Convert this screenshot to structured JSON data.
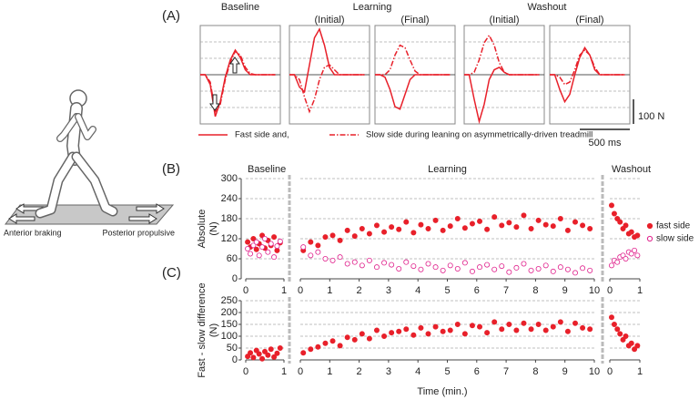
{
  "illustration": {
    "left_label": "Anterior braking",
    "right_label": "Posterior propulsive"
  },
  "chart_data": [
    {
      "type": "line",
      "label": "(A)",
      "legend": [
        "Fast side and,",
        "Slow side during leaning on asymmetrically-driven treadmill"
      ],
      "color": "#e8202a",
      "xlim": [
        0,
        800
      ],
      "ylim": [
        -200,
        200
      ],
      "x": [
        0,
        50,
        100,
        150,
        200,
        250,
        300,
        350,
        400,
        450,
        500,
        550,
        600,
        650,
        700,
        750
      ],
      "scalebar": {
        "y": {
          "value": 100,
          "label": "100 N"
        },
        "x": {
          "value": 500,
          "label": "500 ms"
        }
      },
      "groups": [
        {
          "title": "Baseline",
          "subplots": [
            {
              "fast": [
                0,
                0,
                -40,
                -170,
                -110,
                -10,
                60,
                100,
                70,
                20,
                0,
                0,
                0,
                0,
                0,
                0
              ],
              "slow": [
                0,
                0,
                -30,
                -150,
                -120,
                -20,
                50,
                95,
                80,
                30,
                5,
                0,
                0,
                0,
                0,
                0
              ]
            }
          ]
        },
        {
          "title": "Learning",
          "subplots": [
            {
              "subtitle": "(Initial)",
              "fast": [
                0,
                0,
                -50,
                -70,
                40,
                150,
                185,
                120,
                30,
                0,
                0,
                0,
                0,
                0,
                0,
                0
              ],
              "slow": [
                0,
                0,
                -20,
                -90,
                -150,
                -100,
                -20,
                30,
                40,
                20,
                0,
                0,
                0,
                0,
                0,
                0
              ]
            },
            {
              "subtitle": "(Final)",
              "fast": [
                0,
                0,
                -10,
                -60,
                -130,
                -140,
                -80,
                -20,
                0,
                0,
                0,
                0,
                0,
                0,
                0,
                0
              ],
              "slow": [
                0,
                0,
                0,
                20,
                80,
                120,
                110,
                60,
                15,
                0,
                0,
                0,
                0,
                0,
                0,
                0
              ]
            }
          ]
        },
        {
          "title": "Washout",
          "subplots": [
            {
              "subtitle": "(Initial)",
              "fast": [
                0,
                0,
                -100,
                -190,
                -120,
                -20,
                20,
                30,
                10,
                0,
                0,
                0,
                0,
                0,
                0,
                0
              ],
              "slow": [
                0,
                0,
                10,
                60,
                130,
                160,
                120,
                50,
                10,
                0,
                0,
                0,
                0,
                0,
                0,
                0
              ]
            },
            {
              "subtitle": "(Final)",
              "fast": [
                0,
                0,
                -60,
                -110,
                -80,
                0,
                70,
                110,
                80,
                20,
                0,
                0,
                0,
                0,
                0,
                0
              ],
              "slow": [
                0,
                0,
                -10,
                -40,
                -30,
                20,
                80,
                100,
                80,
                30,
                0,
                0,
                0,
                0,
                0,
                0
              ]
            }
          ]
        }
      ]
    },
    {
      "type": "scatter",
      "label": "(B)",
      "ylabel": [
        "Absolute",
        "(N)"
      ],
      "ylim": [
        0,
        300
      ],
      "yticks": [
        0,
        60,
        120,
        180,
        240,
        300
      ],
      "grid": true,
      "legend": "right",
      "segments": [
        {
          "title": "Baseline",
          "xlim": [
            0,
            1
          ],
          "xticks": [
            0,
            1
          ]
        },
        {
          "title": "Learning",
          "xlim": [
            0,
            10
          ],
          "xticks": [
            0,
            1,
            2,
            3,
            4,
            5,
            6,
            7,
            8,
            9,
            10
          ]
        },
        {
          "title": "Washout",
          "xlim": [
            0,
            1
          ],
          "xticks": [
            0,
            1
          ]
        }
      ],
      "series": [
        {
          "name": "fast side",
          "color": "#e8202a",
          "filled": true,
          "segments": [
            {
              "x": [
                0.05,
                0.12,
                0.2,
                0.28,
                0.35,
                0.43,
                0.5,
                0.58,
                0.66,
                0.74,
                0.82,
                0.9
              ],
              "values": [
                110,
                95,
                120,
                88,
                105,
                130,
                92,
                115,
                100,
                125,
                85,
                108
              ]
            },
            {
              "x": [
                0.1,
                0.35,
                0.6,
                0.85,
                1.1,
                1.35,
                1.6,
                1.85,
                2.1,
                2.35,
                2.6,
                2.85,
                3.1,
                3.35,
                3.6,
                3.85,
                4.1,
                4.35,
                4.6,
                4.85,
                5.1,
                5.35,
                5.6,
                5.85,
                6.1,
                6.35,
                6.6,
                6.85,
                7.1,
                7.35,
                7.6,
                7.85,
                8.1,
                8.35,
                8.6,
                8.85,
                9.1,
                9.35,
                9.6,
                9.85
              ],
              "values": [
                85,
                110,
                100,
                125,
                130,
                115,
                145,
                128,
                150,
                135,
                160,
                140,
                155,
                148,
                170,
                138,
                162,
                150,
                175,
                145,
                158,
                180,
                152,
                165,
                172,
                148,
                185,
                160,
                168,
                155,
                190,
                150,
                175,
                162,
                158,
                180,
                145,
                170,
                160,
                150
              ]
            },
            {
              "x": [
                0.06,
                0.15,
                0.25,
                0.34,
                0.44,
                0.53,
                0.63,
                0.72,
                0.82,
                0.92
              ],
              "values": [
                220,
                195,
                180,
                170,
                150,
                160,
                135,
                140,
                125,
                130
              ]
            }
          ]
        },
        {
          "name": "slow side",
          "color": "#e0208c",
          "filled": false,
          "segments": [
            {
              "x": [
                0.05,
                0.12,
                0.2,
                0.28,
                0.35,
                0.43,
                0.5,
                0.58,
                0.66,
                0.74,
                0.82,
                0.9
              ],
              "values": [
                90,
                75,
                100,
                110,
                70,
                95,
                120,
                80,
                105,
                65,
                98,
                112
              ]
            },
            {
              "x": [
                0.1,
                0.35,
                0.6,
                0.85,
                1.1,
                1.35,
                1.6,
                1.85,
                2.1,
                2.35,
                2.6,
                2.85,
                3.1,
                3.35,
                3.6,
                3.85,
                4.1,
                4.35,
                4.6,
                4.85,
                5.1,
                5.35,
                5.6,
                5.85,
                6.1,
                6.35,
                6.6,
                6.85,
                7.1,
                7.35,
                7.6,
                7.85,
                8.1,
                8.35,
                8.6,
                8.85,
                9.1,
                9.35,
                9.6,
                9.85
              ],
              "values": [
                95,
                70,
                80,
                60,
                55,
                65,
                45,
                50,
                40,
                55,
                35,
                48,
                42,
                30,
                50,
                38,
                28,
                45,
                35,
                25,
                40,
                30,
                48,
                22,
                35,
                42,
                28,
                38,
                20,
                33,
                45,
                25,
                30,
                40,
                22,
                35,
                28,
                18,
                32,
                25
              ]
            },
            {
              "x": [
                0.06,
                0.15,
                0.25,
                0.34,
                0.44,
                0.53,
                0.63,
                0.72,
                0.82,
                0.92
              ],
              "values": [
                40,
                55,
                50,
                65,
                70,
                60,
                80,
                75,
                85,
                70
              ]
            }
          ]
        }
      ]
    },
    {
      "type": "scatter",
      "label": "(C)",
      "ylabel": [
        "Fast - slow difference",
        "(N)"
      ],
      "xlabel": "Time (min.)",
      "ylim": [
        0,
        250
      ],
      "yticks": [
        0,
        50,
        100,
        150,
        200,
        250
      ],
      "grid": true,
      "segments": [
        {
          "xlim": [
            0,
            1
          ],
          "xticks": [
            0,
            1
          ]
        },
        {
          "xlim": [
            0,
            10
          ],
          "xticks": [
            0,
            1,
            2,
            3,
            4,
            5,
            6,
            7,
            8,
            9,
            10
          ]
        },
        {
          "xlim": [
            0,
            1
          ],
          "xticks": [
            0,
            1
          ]
        }
      ],
      "series": [
        {
          "color": "#e8202a",
          "filled": true,
          "segments": [
            {
              "x": [
                0.05,
                0.12,
                0.2,
                0.28,
                0.35,
                0.43,
                0.5,
                0.58,
                0.66,
                0.74,
                0.82,
                0.9
              ],
              "values": [
                15,
                30,
                10,
                40,
                25,
                5,
                35,
                20,
                45,
                12,
                28,
                50
              ]
            },
            {
              "x": [
                0.1,
                0.35,
                0.6,
                0.85,
                1.1,
                1.35,
                1.6,
                1.85,
                2.1,
                2.35,
                2.6,
                2.85,
                3.1,
                3.35,
                3.6,
                3.85,
                4.1,
                4.35,
                4.6,
                4.85,
                5.1,
                5.35,
                5.6,
                5.85,
                6.1,
                6.35,
                6.6,
                6.85,
                7.1,
                7.35,
                7.6,
                7.85,
                8.1,
                8.35,
                8.6,
                8.85,
                9.1,
                9.35,
                9.6,
                9.85
              ],
              "values": [
                30,
                45,
                55,
                70,
                80,
                60,
                95,
                85,
                110,
                90,
                125,
                100,
                115,
                120,
                130,
                105,
                135,
                110,
                140,
                120,
                125,
                150,
                110,
                145,
                140,
                115,
                160,
                130,
                150,
                125,
                155,
                130,
                150,
                125,
                140,
                160,
                120,
                155,
                135,
                130
              ]
            },
            {
              "x": [
                0.06,
                0.15,
                0.25,
                0.34,
                0.44,
                0.53,
                0.63,
                0.72,
                0.82,
                0.92
              ],
              "values": [
                180,
                150,
                130,
                110,
                85,
                100,
                60,
                70,
                45,
                60
              ]
            }
          ]
        }
      ]
    }
  ]
}
